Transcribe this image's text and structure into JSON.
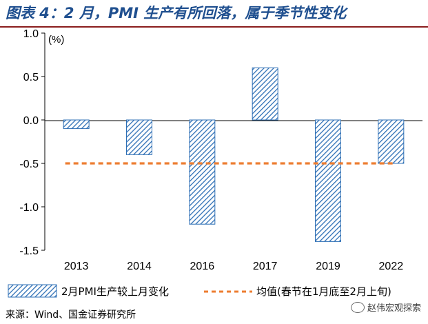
{
  "title": "图表 4：2 月，PMI 生产有所回落，属于季节性变化",
  "source": "来源：Wind、国金证券研究所",
  "watermark": "赵伟宏观探索",
  "colors": {
    "bar": "#2e6fb5",
    "mean_line": "#ed7d31",
    "title": "#1f4f8f"
  },
  "chart_data": {
    "type": "bar",
    "unit": "(%)",
    "categories": [
      "2013",
      "2014",
      "2016",
      "2017",
      "2019",
      "2022"
    ],
    "series": [
      {
        "name": "2月PMI生产较上月变化",
        "values": [
          -0.1,
          -0.4,
          -1.2,
          0.6,
          -1.4,
          -0.5
        ],
        "pattern": "diagonal-hatch"
      }
    ],
    "reference_lines": [
      {
        "name": "均值(春节在1月底至2月上旬)",
        "value": -0.5,
        "style": "dashed"
      }
    ],
    "ylim": [
      -1.5,
      1.0
    ],
    "yticks": [
      1.0,
      0.5,
      0.0,
      -0.5,
      -1.0,
      -1.5
    ],
    "ytick_labels": [
      "1.0",
      "0.5",
      "0.0",
      "-0.5",
      "-1.0",
      "-1.5"
    ],
    "legend_position": "bottom",
    "grid": false
  }
}
